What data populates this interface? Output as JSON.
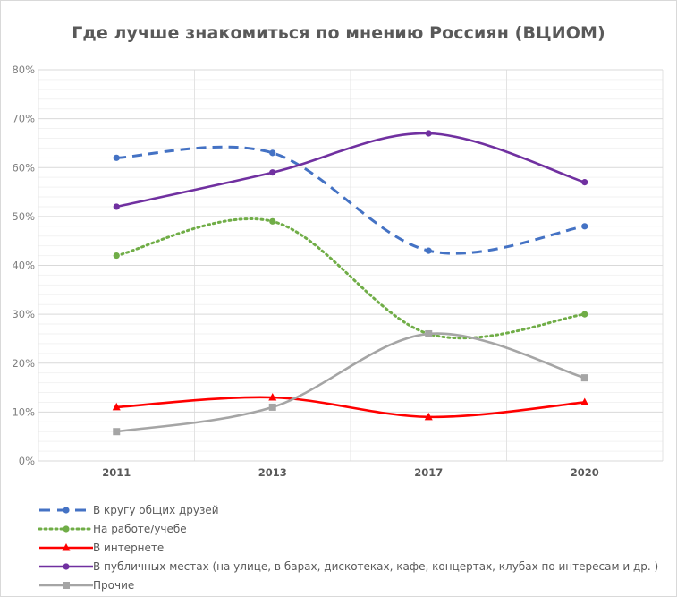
{
  "chart_data": {
    "type": "line",
    "title": "Где лучше знакомиться по мнению Россиян (ВЦИОМ)",
    "xlabel": "",
    "ylabel": "",
    "categories": [
      "2011",
      "2013",
      "2017",
      "2020"
    ],
    "ylim": [
      0,
      80
    ],
    "yticks": [
      "0%",
      "10%",
      "20%",
      "30%",
      "40%",
      "50%",
      "60%",
      "70%",
      "80%"
    ],
    "grid": {
      "major_y": true,
      "minor_y_step": 2,
      "vertical_between_categories": true
    },
    "legend_position": "bottom",
    "smoothed": true,
    "series": [
      {
        "name": "В кругу общих друзей",
        "values": [
          62,
          63,
          43,
          48
        ],
        "color": "#4472C4",
        "style": "dashed",
        "marker": "circle"
      },
      {
        "name": "На работе/учебе",
        "values": [
          42,
          49,
          26,
          30
        ],
        "color": "#70AD47",
        "style": "dotted",
        "marker": "circle"
      },
      {
        "name": "В интернете",
        "values": [
          11,
          13,
          9,
          12
        ],
        "color": "#FF0000",
        "style": "solid",
        "marker": "triangle"
      },
      {
        "name": "В публичных местах (на улице, в барах, дискотеках, кафе, концертах, клубах по интересам и др. )",
        "values": [
          52,
          59,
          67,
          57
        ],
        "color": "#7030A0",
        "style": "solid",
        "marker": "circle"
      },
      {
        "name": "Прочие",
        "values": [
          6,
          11,
          26,
          17
        ],
        "color": "#A5A5A5",
        "style": "solid",
        "marker": "square"
      }
    ]
  }
}
